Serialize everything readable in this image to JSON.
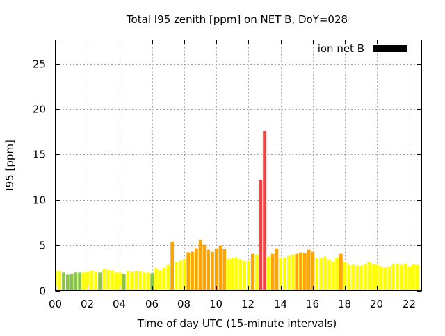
{
  "chart_data": {
    "type": "bar",
    "title": "Total I95 zenith [ppm] on NET B, DoY=028",
    "xlabel": "Time of day UTC (15-minute intervals)",
    "ylabel": "I95 [ppm]",
    "xlim": [
      0,
      22.75
    ],
    "ylim": [
      0,
      27.6
    ],
    "grid": true,
    "legend_position": "top-right",
    "x_tick_values": [
      0,
      2,
      4,
      6,
      8,
      10,
      12,
      14,
      16,
      18,
      20,
      22
    ],
    "x_tick_labels": [
      "00",
      "02",
      "04",
      "06",
      "08",
      "10",
      "12",
      "14",
      "16",
      "18",
      "20",
      "22"
    ],
    "y_tick_values": [
      0,
      5,
      10,
      15,
      20,
      25
    ],
    "y_tick_labels": [
      "0",
      "5",
      "10",
      "15",
      "20",
      "25"
    ],
    "series": [
      {
        "name": "ion net B",
        "legend_color": "#000000",
        "x": [
          0,
          0.25,
          0.5,
          0.75,
          1,
          1.25,
          1.5,
          1.75,
          2,
          2.25,
          2.5,
          2.75,
          3,
          3.25,
          3.5,
          3.75,
          4,
          4.25,
          4.5,
          4.75,
          5,
          5.25,
          5.5,
          5.75,
          6,
          6.25,
          6.5,
          6.75,
          7,
          7.25,
          7.5,
          7.75,
          8,
          8.25,
          8.5,
          8.75,
          9,
          9.25,
          9.5,
          9.75,
          10,
          10.25,
          10.5,
          10.75,
          11,
          11.25,
          11.5,
          11.75,
          12,
          12.25,
          12.5,
          12.75,
          13,
          13.25,
          13.5,
          13.75,
          14,
          14.25,
          14.5,
          14.75,
          15,
          15.25,
          15.5,
          15.75,
          16,
          16.25,
          16.5,
          16.75,
          17,
          17.25,
          17.5,
          17.75,
          18,
          18.25,
          18.5,
          18.75,
          19,
          19.25,
          19.5,
          19.75,
          20,
          20.25,
          20.5,
          20.75,
          21,
          21.25,
          21.5,
          21.75,
          22,
          22.25,
          22.5
        ],
        "values": [
          2.15,
          2.15,
          2.0,
          1.77,
          1.84,
          2.0,
          2.0,
          2.0,
          2.07,
          2.22,
          2.07,
          2.0,
          2.37,
          2.3,
          2.22,
          2.0,
          2.0,
          1.84,
          2.15,
          2.07,
          2.15,
          2.15,
          2.0,
          2.0,
          1.92,
          2.45,
          2.22,
          2.52,
          2.83,
          5.4,
          3.13,
          3.28,
          3.5,
          4.2,
          4.27,
          4.65,
          5.63,
          5.03,
          4.5,
          4.27,
          4.65,
          4.95,
          4.57,
          3.5,
          3.58,
          3.66,
          3.43,
          3.28,
          3.28,
          4.04,
          3.96,
          12.2,
          17.6,
          3.74,
          4.04,
          4.65,
          3.58,
          3.66,
          3.81,
          3.96,
          4.04,
          4.2,
          4.12,
          4.5,
          4.27,
          3.58,
          3.58,
          3.74,
          3.43,
          3.2,
          3.66,
          4.04,
          3.13,
          2.83,
          2.83,
          2.75,
          2.75,
          2.9,
          3.13,
          2.9,
          2.83,
          2.68,
          2.52,
          2.68,
          2.9,
          2.98,
          2.83,
          2.98,
          2.68,
          2.9,
          2.83
        ],
        "colors": [
          "y",
          "y",
          "g",
          "g",
          "g",
          "g",
          "g",
          "y",
          "y",
          "y",
          "y",
          "g",
          "y",
          "y",
          "y",
          "y",
          "y",
          "g",
          "y",
          "y",
          "y",
          "y",
          "y",
          "y",
          "g",
          "y",
          "y",
          "y",
          "y",
          "o",
          "y",
          "y",
          "y",
          "o",
          "o",
          "o",
          "o",
          "o",
          "o",
          "o",
          "o",
          "o",
          "o",
          "y",
          "y",
          "y",
          "y",
          "y",
          "y",
          "o",
          "y",
          "r",
          "r",
          "y",
          "o",
          "o",
          "y",
          "y",
          "y",
          "y",
          "o",
          "o",
          "o",
          "o",
          "o",
          "y",
          "y",
          "y",
          "y",
          "y",
          "y",
          "o",
          "y",
          "y",
          "y",
          "y",
          "y",
          "y",
          "y",
          "y",
          "y",
          "y",
          "y",
          "y",
          "y",
          "y",
          "y",
          "y",
          "y",
          "y",
          "y"
        ]
      }
    ],
    "color_map": {
      "g": "#88c540",
      "y": "#ffff00",
      "o": "#ffa500",
      "r": "#ef4444"
    }
  }
}
